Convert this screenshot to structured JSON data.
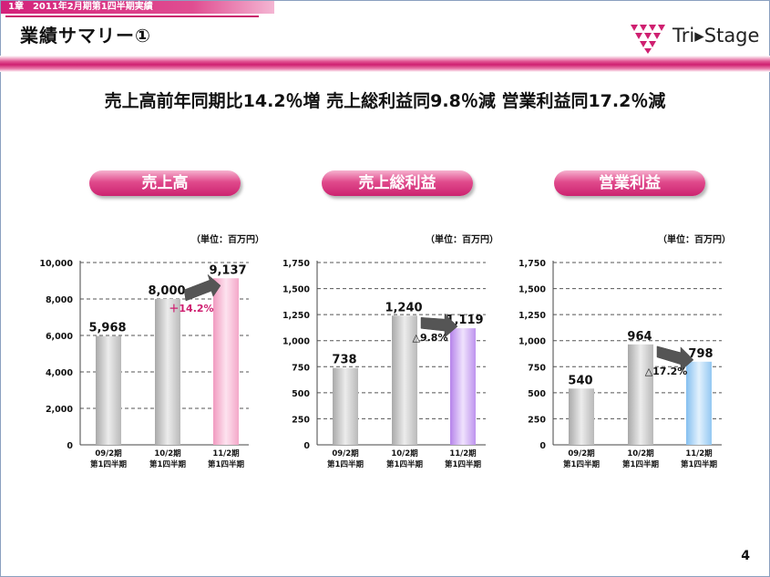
{
  "header": {
    "chapter": "1章　2011年2月期第1四半期実績",
    "title": "業績サマリー①",
    "logo_text": "Tri▸Stage"
  },
  "headline": "売上高前年同期比14.2％増 売上総利益同9.8％減 営業利益同17.2％減",
  "page_number": "4",
  "colors": {
    "accent": "#cf1f70",
    "gray_bar": "#c9c9c9",
    "pink_bar": "#f7b8d3",
    "purple_bar": "#c9a3f0",
    "blue_bar": "#a9d3f5"
  },
  "chart_data": [
    {
      "type": "bar",
      "title": "売上高",
      "unit": "（単位：百万円）",
      "categories": [
        "09/2期\n第1四半期",
        "10/2期\n第1四半期",
        "11/2期\n第1四半期"
      ],
      "values": [
        5968,
        8000,
        9137
      ],
      "value_labels": [
        "5,968",
        "8,000",
        "9,137"
      ],
      "ylim": [
        0,
        10000
      ],
      "yticks": [
        0,
        2000,
        4000,
        6000,
        8000,
        10000
      ],
      "ytick_labels": [
        "0",
        "2,000",
        "4,000",
        "6,000",
        "8,000",
        "10,000"
      ],
      "change_label": "＋14.2%",
      "change_color": "#cf1f70",
      "bar_colors": [
        "gray",
        "gray",
        "pink"
      ],
      "grid": true
    },
    {
      "type": "bar",
      "title": "売上総利益",
      "unit": "（単位：百万円）",
      "categories": [
        "09/2期\n第1四半期",
        "10/2期\n第1四半期",
        "11/2期\n第1四半期"
      ],
      "values": [
        738,
        1240,
        1119
      ],
      "value_labels": [
        "738",
        "1,240",
        "1,119"
      ],
      "ylim": [
        0,
        1750
      ],
      "yticks": [
        0,
        250,
        500,
        750,
        1000,
        1250,
        1500,
        1750
      ],
      "ytick_labels": [
        "0",
        "250",
        "500",
        "750",
        "1,000",
        "1,250",
        "1,500",
        "1,750"
      ],
      "change_label": "△9.8%",
      "change_color": "#111111",
      "bar_colors": [
        "gray",
        "gray",
        "purple"
      ],
      "grid": true
    },
    {
      "type": "bar",
      "title": "営業利益",
      "unit": "（単位：百万円）",
      "categories": [
        "09/2期\n第1四半期",
        "10/2期\n第1四半期",
        "11/2期\n第1四半期"
      ],
      "values": [
        540,
        964,
        798
      ],
      "value_labels": [
        "540",
        "964",
        "798"
      ],
      "ylim": [
        0,
        1750
      ],
      "yticks": [
        0,
        250,
        500,
        750,
        1000,
        1250,
        1500,
        1750
      ],
      "ytick_labels": [
        "0",
        "250",
        "500",
        "750",
        "1,000",
        "1,250",
        "1,500",
        "1,750"
      ],
      "change_label": "△17.2%",
      "change_color": "#111111",
      "bar_colors": [
        "gray",
        "gray",
        "blue"
      ],
      "grid": true
    }
  ]
}
